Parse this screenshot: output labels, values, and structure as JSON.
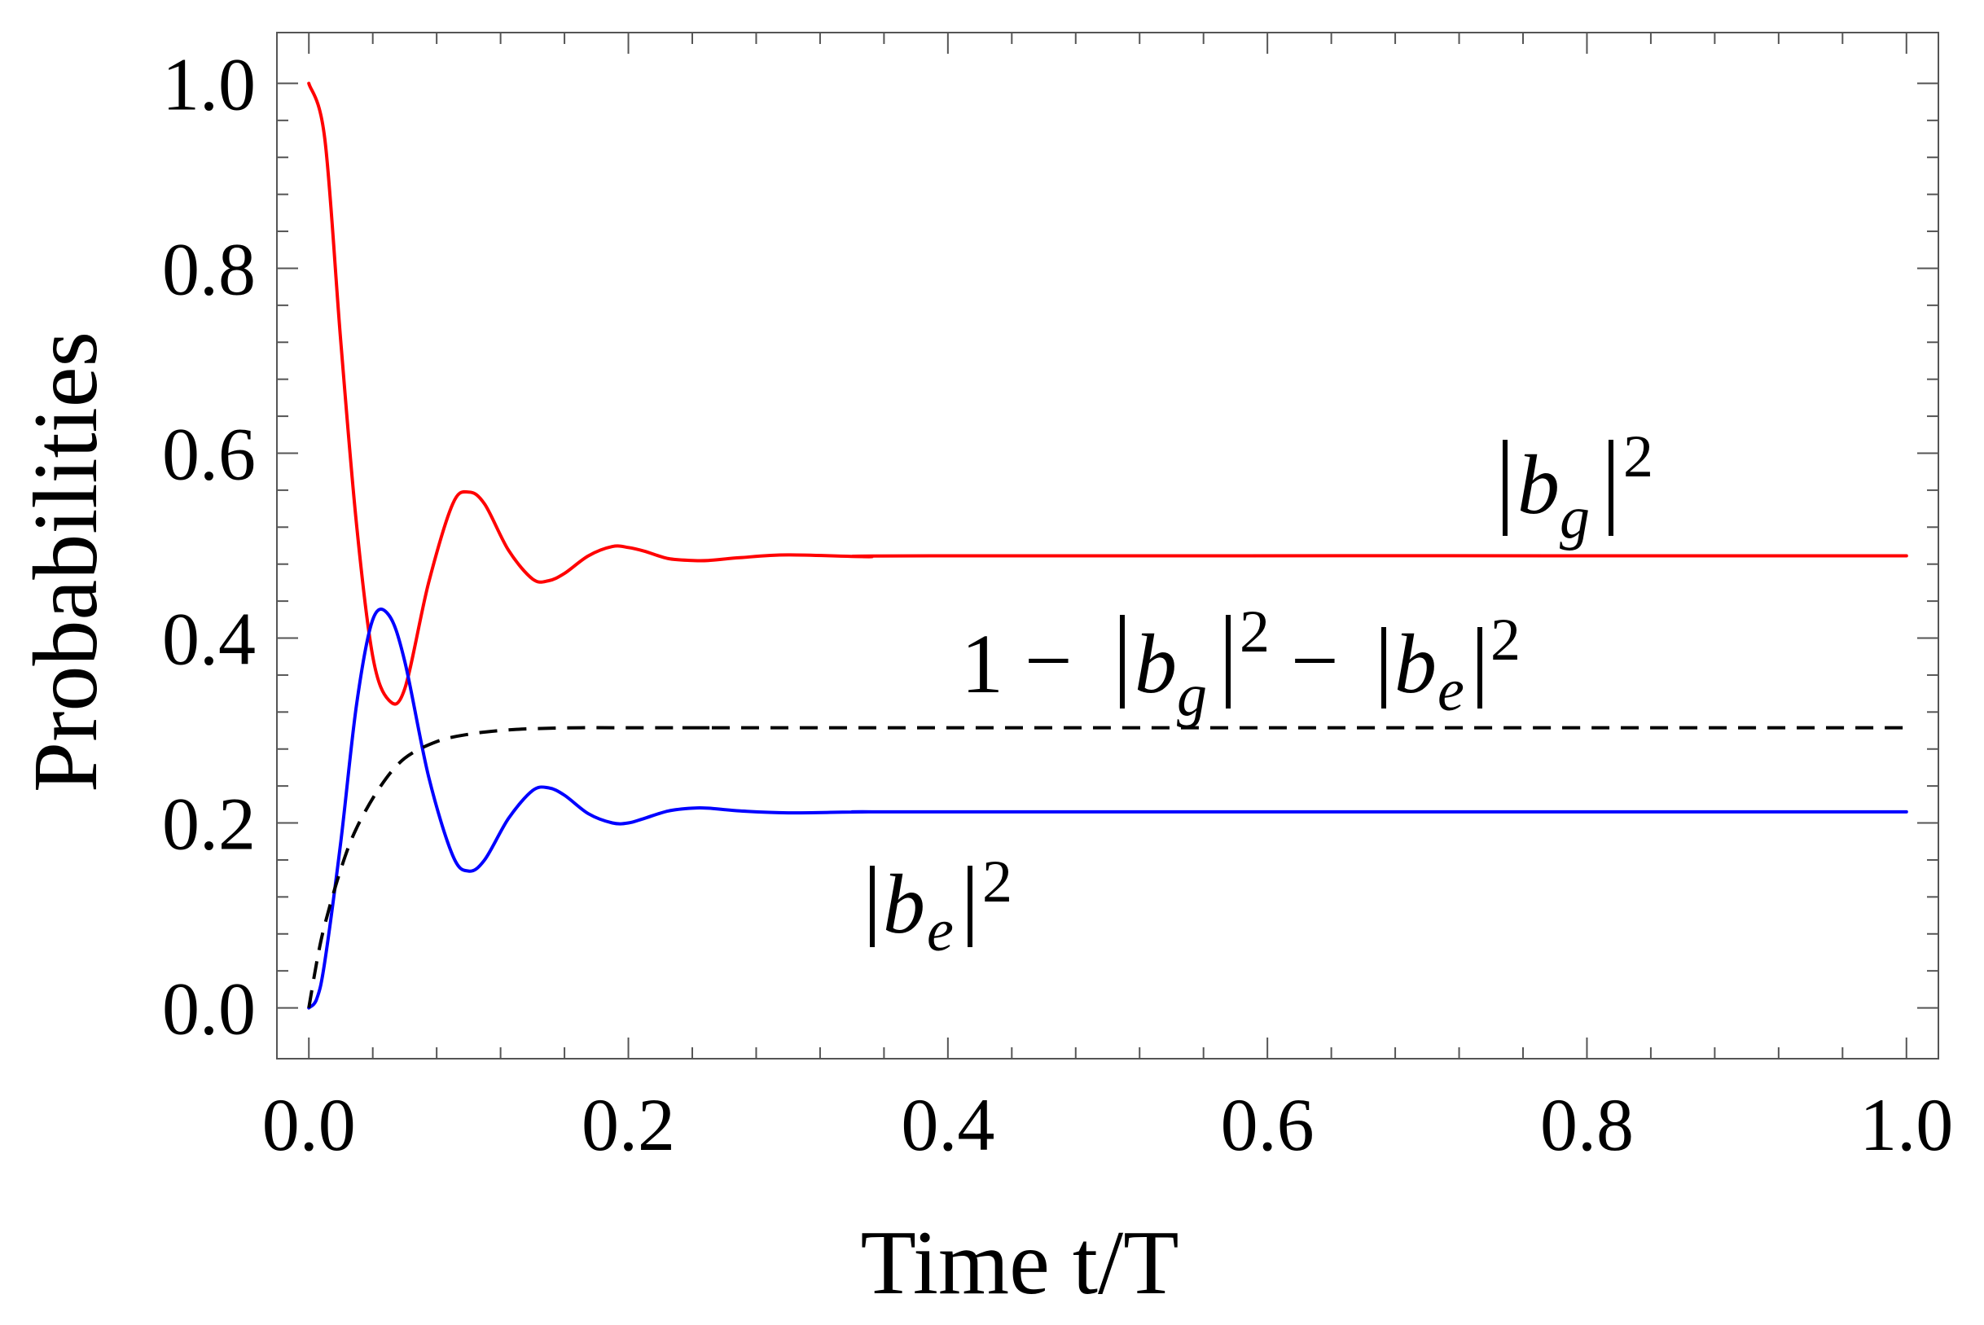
{
  "chart_data": {
    "type": "line",
    "title": "",
    "xlabel": "Time t/T",
    "ylabel": "Probabilities",
    "xlim": [
      -0.02,
      1.02
    ],
    "ylim": [
      -0.055,
      1.055
    ],
    "grid": false,
    "xticks": [
      0.0,
      0.2,
      0.4,
      0.6,
      0.8,
      1.0
    ],
    "xtick_labels": [
      "0.0",
      "0.2",
      "0.4",
      "0.6",
      "0.8",
      "1.0"
    ],
    "yticks": [
      0.0,
      0.2,
      0.4,
      0.6,
      0.8,
      1.0
    ],
    "ytick_labels": [
      "0.0",
      "0.2",
      "0.4",
      "0.6",
      "0.8",
      "1.0"
    ],
    "series": [
      {
        "name": "|b_g|^2",
        "color": "#ff0000",
        "style": "solid",
        "x": [
          0,
          0.01,
          0.02,
          0.03,
          0.04,
          0.05,
          0.06,
          0.075,
          0.09,
          0.1,
          0.11,
          0.125,
          0.14,
          0.15,
          0.16,
          0.175,
          0.19,
          0.2,
          0.21,
          0.225,
          0.24,
          0.25,
          0.27,
          0.3,
          0.35,
          0.4,
          1.0
        ],
        "values": [
          1.0,
          0.94,
          0.72,
          0.52,
          0.38,
          0.333,
          0.345,
          0.46,
          0.545,
          0.558,
          0.545,
          0.495,
          0.464,
          0.462,
          0.47,
          0.489,
          0.499,
          0.498,
          0.494,
          0.486,
          0.484,
          0.484,
          0.487,
          0.49,
          0.488,
          0.489,
          0.489
        ]
      },
      {
        "name": "|b_e|^2",
        "color": "#0000ff",
        "style": "solid",
        "x": [
          0,
          0.005,
          0.01,
          0.02,
          0.03,
          0.04,
          0.05,
          0.06,
          0.075,
          0.09,
          0.1,
          0.11,
          0.125,
          0.14,
          0.15,
          0.16,
          0.175,
          0.19,
          0.2,
          0.21,
          0.225,
          0.24,
          0.25,
          0.27,
          0.3,
          0.35,
          0.4,
          1.0
        ],
        "values": [
          0.0,
          0.01,
          0.05,
          0.18,
          0.33,
          0.42,
          0.425,
          0.375,
          0.25,
          0.165,
          0.148,
          0.16,
          0.205,
          0.235,
          0.238,
          0.23,
          0.21,
          0.2,
          0.2,
          0.205,
          0.213,
          0.216,
          0.216,
          0.213,
          0.211,
          0.212,
          0.212,
          0.212
        ]
      },
      {
        "name": "1 - |b_g|^2 - |b_e|^2",
        "color": "#000000",
        "style": "dashed",
        "x": [
          0,
          0.005,
          0.01,
          0.02,
          0.03,
          0.045,
          0.06,
          0.08,
          0.1,
          0.12,
          0.14,
          0.17,
          0.2,
          0.25,
          0.3,
          1.0
        ],
        "values": [
          0.0,
          0.05,
          0.09,
          0.15,
          0.195,
          0.24,
          0.27,
          0.288,
          0.296,
          0.3,
          0.302,
          0.303,
          0.303,
          0.303,
          0.303,
          0.303
        ]
      }
    ],
    "annotations": [
      {
        "series": "|b_g|^2",
        "base": "b",
        "sub": "g",
        "sup": "2",
        "prefix": "",
        "suffix": ""
      },
      {
        "series": "|b_e|^2",
        "base": "b",
        "sub": "e",
        "sup": "2",
        "prefix": "",
        "suffix": ""
      },
      {
        "series": "1 - |b_g|^2 - |b_e|^2",
        "text": "1 − |b_g|^2 − |b_e|^2",
        "lead": "1",
        "minus": "−"
      }
    ]
  }
}
